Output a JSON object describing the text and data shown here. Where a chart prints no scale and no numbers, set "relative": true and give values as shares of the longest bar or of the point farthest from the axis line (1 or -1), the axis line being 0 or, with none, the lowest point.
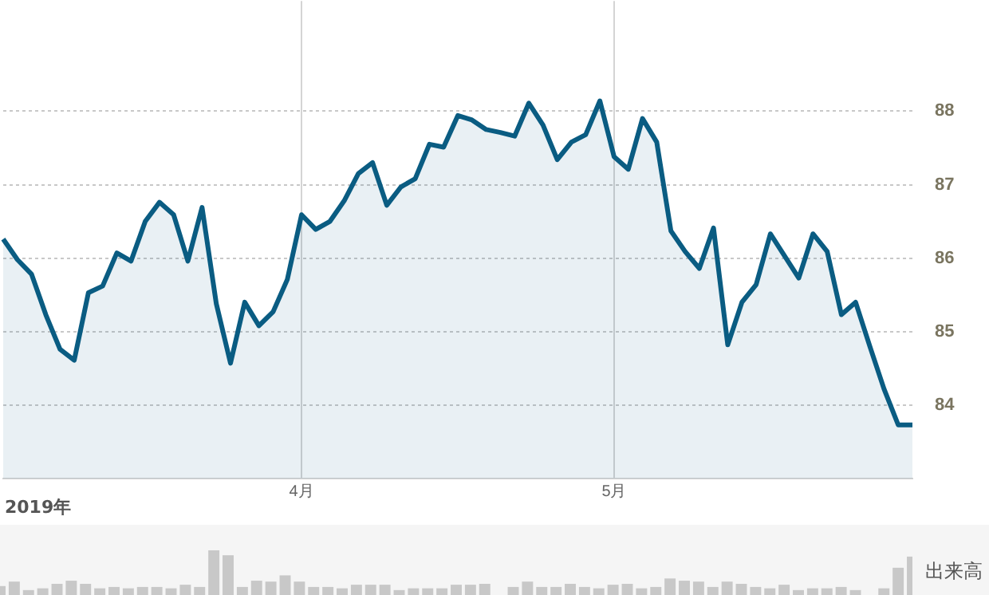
{
  "chart_data": [
    {
      "type": "area",
      "annotations": [
        "2019年"
      ],
      "color": "#0a5c82",
      "grid": true,
      "categories": [
        null,
        null,
        null,
        null,
        null,
        null,
        null,
        null,
        null,
        null,
        null,
        null,
        null,
        null,
        null,
        null,
        null,
        null,
        null,
        null,
        null,
        "4月",
        null,
        null,
        null,
        null,
        null,
        null,
        null,
        null,
        null,
        null,
        null,
        null,
        null,
        null,
        null,
        null,
        null,
        null,
        null,
        null,
        null,
        "5月",
        null,
        null,
        null,
        null,
        null,
        null,
        null,
        null,
        null,
        null,
        null,
        null,
        null,
        null,
        null,
        null,
        null,
        null,
        null,
        null,
        null
      ],
      "values": [
        86.26,
        85.98,
        85.78,
        85.23,
        84.76,
        84.61,
        85.53,
        85.62,
        86.07,
        85.96,
        86.5,
        86.76,
        86.59,
        85.96,
        86.69,
        85.38,
        84.57,
        85.4,
        85.08,
        85.27,
        85.71,
        86.59,
        86.39,
        86.5,
        86.78,
        87.15,
        87.3,
        86.72,
        86.97,
        87.08,
        87.55,
        87.51,
        87.94,
        87.88,
        87.75,
        87.71,
        87.66,
        88.11,
        87.81,
        87.34,
        87.58,
        87.68,
        88.14,
        87.38,
        87.21,
        87.9,
        87.58,
        86.37,
        86.09,
        85.86,
        86.41,
        84.82,
        85.4,
        85.64,
        86.33,
        86.03,
        85.73,
        86.33,
        86.09,
        85.23,
        85.4,
        84.8,
        84.22,
        83.73,
        83.73
      ],
      "ylim": [
        83,
        89.5
      ],
      "yticks": [
        84,
        85,
        86,
        87,
        88
      ]
    },
    {
      "type": "bar",
      "relative": true,
      "ylabel": "出来高",
      "color": "#c8c8c8",
      "categories": [
        null,
        null,
        null,
        null,
        null,
        null,
        null,
        null,
        null,
        null,
        null,
        null,
        null,
        null,
        null,
        null,
        null,
        null,
        null,
        null,
        null,
        null,
        null,
        null,
        null,
        null,
        null,
        null,
        null,
        null,
        null,
        null,
        null,
        null,
        null,
        null,
        null,
        null,
        null,
        null,
        null,
        null,
        null,
        null,
        null,
        null,
        null,
        null,
        null,
        null,
        null,
        null,
        null,
        null,
        null,
        null,
        null,
        null,
        null,
        null,
        null,
        null,
        null,
        null,
        null
      ],
      "values": [
        0.2,
        0.3,
        0.11,
        0.15,
        0.25,
        0.32,
        0.25,
        0.15,
        0.18,
        0.15,
        0.18,
        0.18,
        0.15,
        0.23,
        0.18,
        1,
        0.89,
        0.18,
        0.32,
        0.3,
        0.44,
        0.3,
        0.18,
        0.18,
        0.15,
        0.23,
        0.23,
        0.23,
        0.11,
        0.15,
        0.15,
        0.15,
        0.23,
        0.23,
        0.25,
        0,
        0.18,
        0.3,
        0.18,
        0.18,
        0.25,
        0.18,
        0.15,
        0.23,
        0.25,
        0.15,
        0.18,
        0.37,
        0.32,
        0.3,
        0.18,
        0.3,
        0.25,
        0.18,
        0.15,
        0.23,
        0.11,
        0.15,
        0.15,
        0.18,
        0.11,
        0,
        0.15,
        0.61,
        0.86
      ]
    }
  ]
}
